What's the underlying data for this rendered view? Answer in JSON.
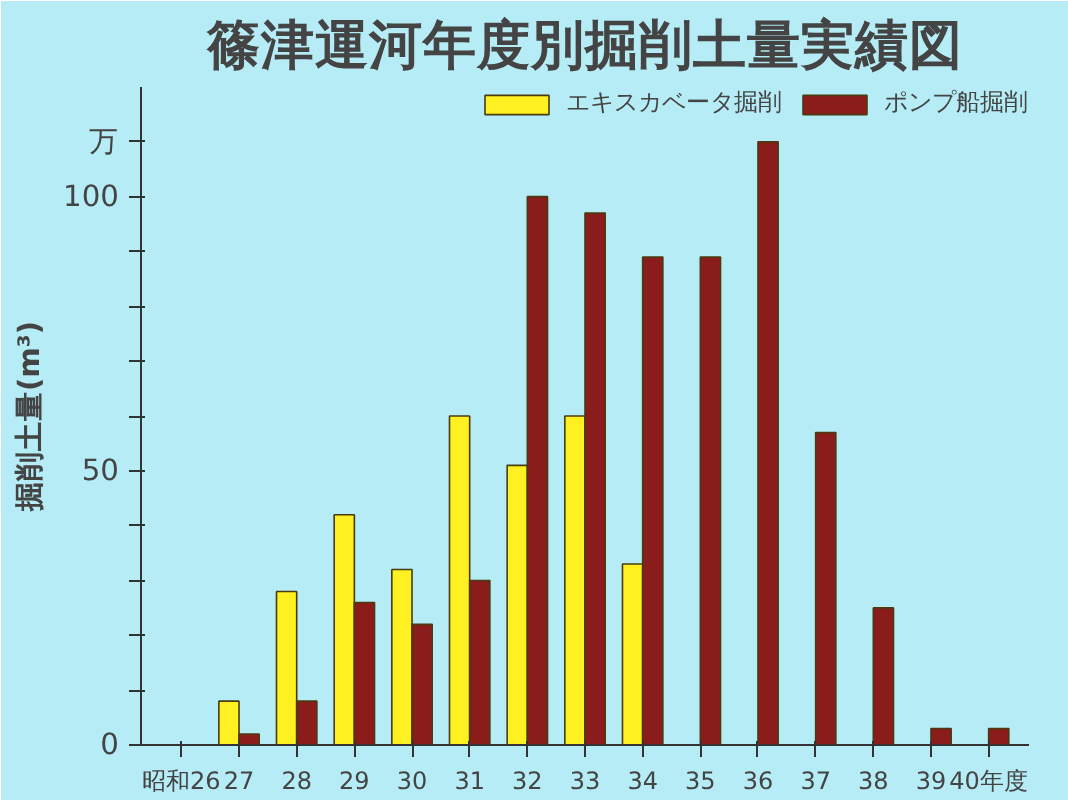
{
  "chart_data": {
    "type": "bar",
    "title": "篠津運河年度別掘削土量実績図",
    "ylabel": "掘削土量(m³)",
    "categories": [
      "昭和26",
      "27",
      "28",
      "29",
      "30",
      "31",
      "32",
      "33",
      "34",
      "35",
      "36",
      "37",
      "38",
      "39",
      "40年度"
    ],
    "series": [
      {
        "name": "エキスカベータ掘削",
        "color": "#fff021",
        "values": [
          null,
          8,
          28,
          42,
          32,
          60,
          51,
          60,
          33,
          null,
          null,
          null,
          null,
          null,
          null
        ]
      },
      {
        "name": "ポンプ船掘削",
        "color": "#8b1c1c",
        "values": [
          null,
          2,
          8,
          26,
          22,
          30,
          100,
          97,
          89,
          89,
          110,
          57,
          25,
          3,
          3
        ]
      }
    ],
    "ylim": [
      0,
      120
    ],
    "yticks": [
      0,
      {
        "value": 10,
        "label": null
      },
      {
        "value": 20,
        "label": null
      },
      {
        "value": 30,
        "label": null
      },
      {
        "value": 40,
        "label": null
      },
      50,
      {
        "value": 60,
        "label": null
      },
      {
        "value": 70,
        "label": null
      },
      {
        "value": 80,
        "label": null
      },
      {
        "value": 90,
        "label": null
      },
      100,
      {
        "value": 110,
        "label": "万"
      }
    ],
    "grid": false,
    "legend": "top right"
  }
}
